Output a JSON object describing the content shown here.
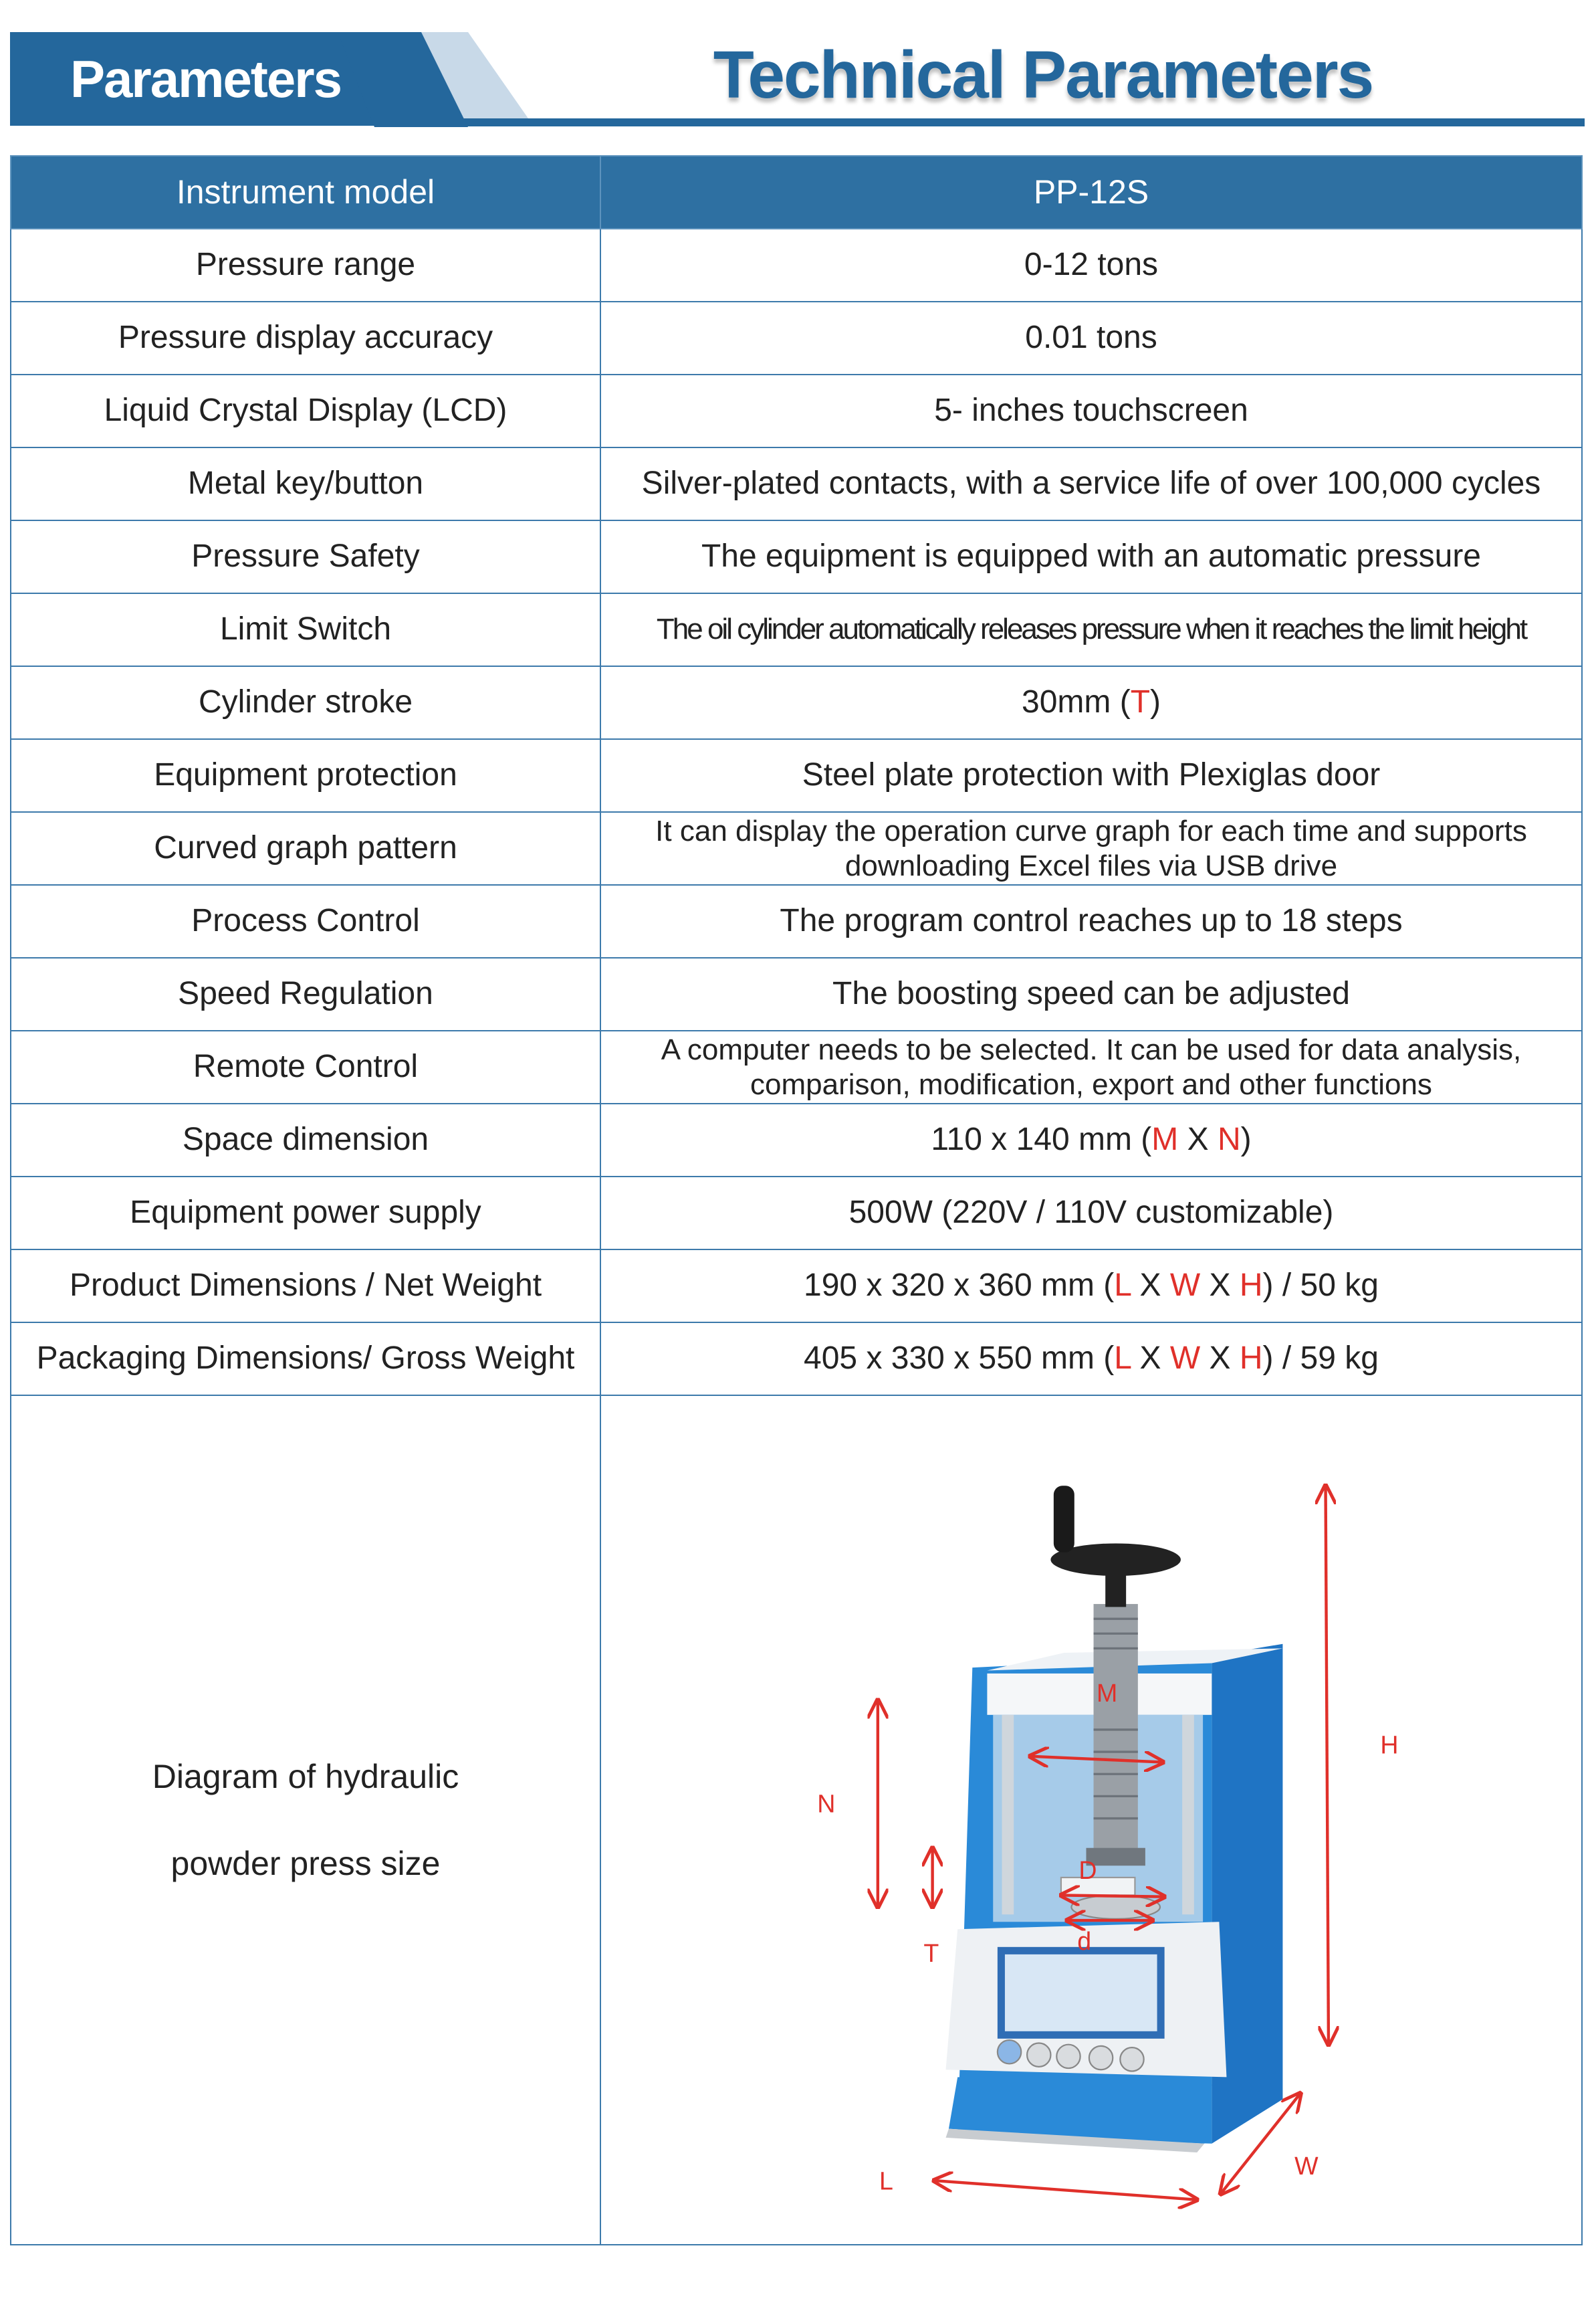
{
  "header": {
    "tab_label": "Parameters",
    "title": "Technical Parameters"
  },
  "table": {
    "head": {
      "label": "Instrument model",
      "value": "PP-12S"
    },
    "rows": [
      {
        "label": "Pressure range",
        "value": [
          {
            "t": "0-12 tons"
          }
        ]
      },
      {
        "label": "Pressure display accuracy",
        "value": [
          {
            "t": "0.01 tons"
          }
        ]
      },
      {
        "label": "Liquid Crystal Display (LCD)",
        "value": [
          {
            "t": "5- inches touchscreen"
          }
        ]
      },
      {
        "label": "Metal key/button",
        "value": [
          {
            "t": "Silver-plated contacts, with a service life of over 100,000 cycles"
          }
        ]
      },
      {
        "label": "Pressure Safety",
        "value": [
          {
            "t": "The equipment is equipped with an automatic pressure"
          }
        ]
      },
      {
        "label": "Limit Switch",
        "value": [
          {
            "t": "The oil cylinder automatically releases pressure when it reaches the limit height"
          }
        ]
      },
      {
        "label": "Cylinder stroke",
        "value": [
          {
            "t": "30mm ("
          },
          {
            "t": "T",
            "red": true
          },
          {
            "t": ")"
          }
        ]
      },
      {
        "label": "Equipment protection",
        "value": [
          {
            "t": "Steel plate protection with Plexiglas door"
          }
        ]
      },
      {
        "label": "Curved graph pattern",
        "value": [
          {
            "t": "It can display the operation curve graph for each time and supports downloading Excel files via USB drive"
          }
        ]
      },
      {
        "label": "Process Control",
        "value": [
          {
            "t": "The program control reaches up to 18 steps"
          }
        ]
      },
      {
        "label": "Speed Regulation",
        "value": [
          {
            "t": "The boosting speed can be adjusted"
          }
        ]
      },
      {
        "label": "Remote Control",
        "value": [
          {
            "t": "A computer needs to be selected. It can be used for data analysis, comparison, modification, export and other functions"
          }
        ]
      },
      {
        "label": "Space dimension",
        "value": [
          {
            "t": "110 x 140 mm ("
          },
          {
            "t": "M",
            "red": true
          },
          {
            "t": " X "
          },
          {
            "t": "N",
            "red": true
          },
          {
            "t": ")"
          }
        ]
      },
      {
        "label": "Equipment power supply",
        "value": [
          {
            "t": "500W (220V / 110V customizable)"
          }
        ]
      },
      {
        "label": "Product Dimensions / Net Weight",
        "value": [
          {
            "t": "190 x 320 x 360 mm ("
          },
          {
            "t": "L",
            "red": true
          },
          {
            "t": " X "
          },
          {
            "t": "W",
            "red": true
          },
          {
            "t": " X "
          },
          {
            "t": "H",
            "red": true
          },
          {
            "t": ") / 50 kg"
          }
        ]
      },
      {
        "label": "Packaging Dimensions/ Gross Weight",
        "value": [
          {
            "t": "405 x 330 x 550 mm ("
          },
          {
            "t": "L",
            "red": true
          },
          {
            "t": " X "
          },
          {
            "t": "W",
            "red": true
          },
          {
            "t": " X "
          },
          {
            "t": "H",
            "red": true
          },
          {
            "t": ") / 59 kg"
          }
        ]
      }
    ],
    "diagram": {
      "label_line1": "Diagram of hydraulic",
      "label_line2": "powder press size",
      "dimension_labels": {
        "M": "M",
        "N": "N",
        "T": "T",
        "H": "H",
        "W": "W",
        "L": "L",
        "D": "D",
        "d": "d"
      }
    }
  },
  "colors": {
    "brand_blue": "#24679c",
    "header_row": "#2e70a2",
    "dimension_red": "#e0302a",
    "machine_blue": "#2a8ad8"
  }
}
